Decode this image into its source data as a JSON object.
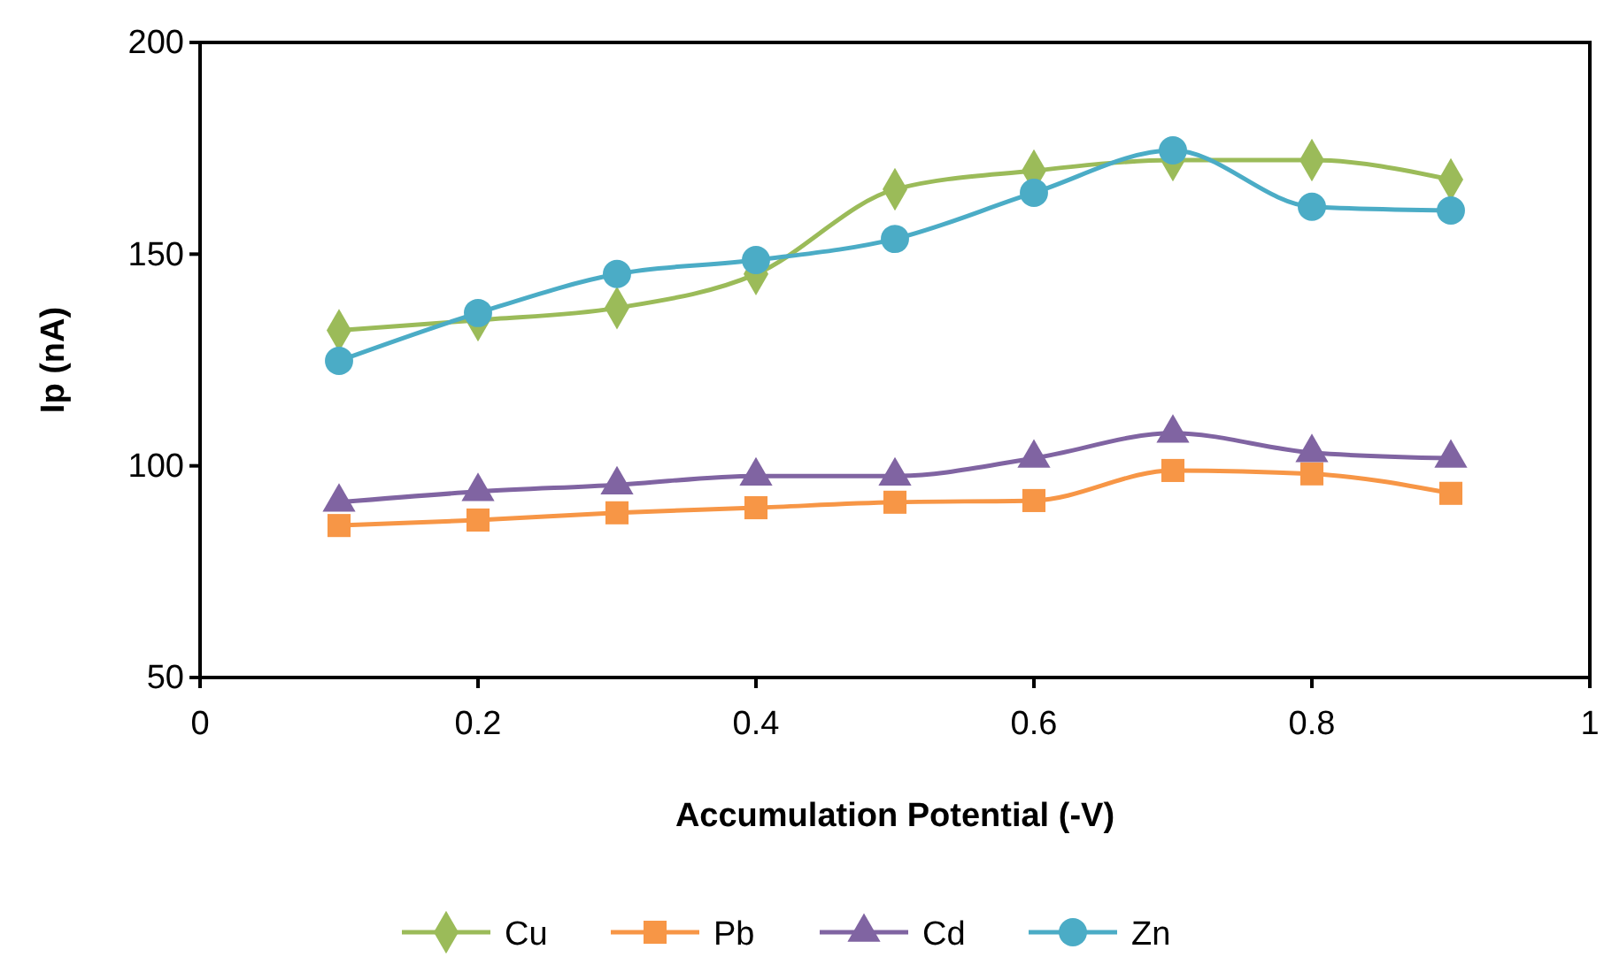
{
  "chart_data": {
    "type": "line",
    "xlabel": "Accumulation Potential (-V)",
    "ylabel": "Ip (nA)",
    "x": [
      0.1,
      0.2,
      0.3,
      0.4,
      0.5,
      0.6,
      0.7,
      0.8,
      0.9
    ],
    "xlim": [
      0,
      1
    ],
    "xticks": [
      0,
      0.2,
      0.4,
      0.6,
      0.8,
      1
    ],
    "ylim": [
      50,
      200
    ],
    "yticks": [
      50,
      100,
      150,
      200
    ],
    "grid": false,
    "legend": "bottom",
    "line_style": "solid",
    "series": [
      {
        "name": "Cu",
        "color": "#9bbb59",
        "marker": "diamond",
        "values": [
          132,
          134.4,
          137.3,
          145.3,
          165.3,
          169.7,
          172.2,
          172.2,
          167.6
        ]
      },
      {
        "name": "Pb",
        "color": "#f79646",
        "marker": "square",
        "values": [
          85.9,
          87.2,
          88.9,
          90.1,
          91.4,
          91.8,
          98.9,
          98.1,
          93.5
        ]
      },
      {
        "name": "Cd",
        "color": "#8064a2",
        "marker": "triangle",
        "values": [
          91.4,
          93.9,
          95.5,
          97.6,
          97.6,
          101.8,
          107.7,
          103.1,
          101.8
        ]
      },
      {
        "name": "Zn",
        "color": "#4bacc6",
        "marker": "circle",
        "values": [
          124.8,
          136.1,
          145.3,
          148.6,
          153.6,
          164.5,
          174.5,
          161.2,
          160.3
        ]
      }
    ]
  }
}
